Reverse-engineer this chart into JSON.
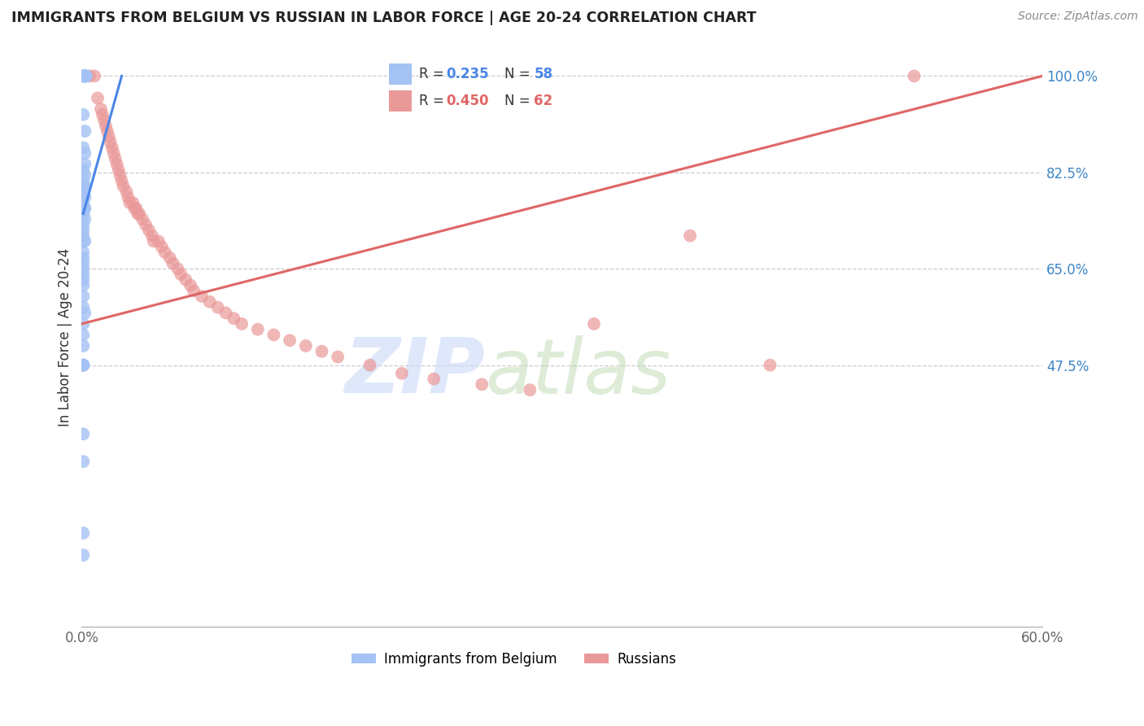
{
  "title": "IMMIGRANTS FROM BELGIUM VS RUSSIAN IN LABOR FORCE | AGE 20-24 CORRELATION CHART",
  "source": "Source: ZipAtlas.com",
  "ylabel": "In Labor Force | Age 20-24",
  "xlim": [
    0.0,
    0.6
  ],
  "ylim": [
    0.0,
    1.05
  ],
  "ytick_vals": [
    0.475,
    0.65,
    0.825,
    1.0
  ],
  "ytick_labels": [
    "47.5%",
    "65.0%",
    "82.5%",
    "100.0%"
  ],
  "xtick_vals": [
    0.0,
    0.1,
    0.2,
    0.3,
    0.4,
    0.5,
    0.6
  ],
  "xtick_labels": [
    "0.0%",
    "",
    "",
    "",
    "",
    "",
    "60.0%"
  ],
  "blue_R": 0.235,
  "blue_N": 58,
  "pink_R": 0.45,
  "pink_N": 62,
  "blue_color": "#a4c2f4",
  "pink_color": "#ea9999",
  "blue_line_color": "#4a86e8",
  "pink_line_color": "#e06666",
  "watermark_zip": "ZIP",
  "watermark_atlas": "atlas",
  "blue_scatter_x": [
    0.001,
    0.002,
    0.001,
    0.002,
    0.003,
    0.002,
    0.001,
    0.002,
    0.001,
    0.002,
    0.001,
    0.002,
    0.001,
    0.002,
    0.002,
    0.001,
    0.002,
    0.001,
    0.001,
    0.002,
    0.001,
    0.001,
    0.001,
    0.002,
    0.001,
    0.001,
    0.001,
    0.002,
    0.002,
    0.001,
    0.001,
    0.002,
    0.001,
    0.001,
    0.001,
    0.001,
    0.002,
    0.001,
    0.001,
    0.001,
    0.001,
    0.001,
    0.001,
    0.001,
    0.001,
    0.001,
    0.002,
    0.001,
    0.001,
    0.001,
    0.001,
    0.001,
    0.001,
    0.001,
    0.001,
    0.001,
    0.001,
    0.001
  ],
  "blue_scatter_y": [
    1.0,
    1.0,
    1.0,
    1.0,
    1.0,
    1.0,
    1.0,
    1.0,
    1.0,
    1.0,
    0.93,
    0.9,
    0.87,
    0.86,
    0.84,
    0.83,
    0.82,
    0.81,
    0.8,
    0.8,
    0.79,
    0.79,
    0.78,
    0.78,
    0.77,
    0.77,
    0.76,
    0.76,
    0.76,
    0.75,
    0.75,
    0.74,
    0.73,
    0.72,
    0.71,
    0.7,
    0.7,
    0.68,
    0.67,
    0.66,
    0.65,
    0.64,
    0.63,
    0.62,
    0.6,
    0.58,
    0.57,
    0.55,
    0.53,
    0.51,
    0.475,
    0.475,
    0.475,
    0.475,
    0.35,
    0.3,
    0.17,
    0.13
  ],
  "pink_scatter_x": [
    0.005,
    0.008,
    0.01,
    0.012,
    0.013,
    0.014,
    0.015,
    0.016,
    0.017,
    0.018,
    0.019,
    0.02,
    0.021,
    0.022,
    0.023,
    0.024,
    0.025,
    0.026,
    0.028,
    0.029,
    0.03,
    0.032,
    0.033,
    0.034,
    0.035,
    0.036,
    0.038,
    0.04,
    0.042,
    0.044,
    0.045,
    0.048,
    0.05,
    0.052,
    0.055,
    0.057,
    0.06,
    0.062,
    0.065,
    0.068,
    0.07,
    0.075,
    0.08,
    0.085,
    0.09,
    0.095,
    0.1,
    0.11,
    0.12,
    0.13,
    0.14,
    0.15,
    0.16,
    0.18,
    0.2,
    0.22,
    0.25,
    0.28,
    0.32,
    0.38,
    0.43,
    0.52
  ],
  "pink_scatter_y": [
    1.0,
    1.0,
    0.96,
    0.94,
    0.93,
    0.92,
    0.91,
    0.9,
    0.89,
    0.88,
    0.87,
    0.86,
    0.85,
    0.84,
    0.83,
    0.82,
    0.81,
    0.8,
    0.79,
    0.78,
    0.77,
    0.77,
    0.76,
    0.76,
    0.75,
    0.75,
    0.74,
    0.73,
    0.72,
    0.71,
    0.7,
    0.7,
    0.69,
    0.68,
    0.67,
    0.66,
    0.65,
    0.64,
    0.63,
    0.62,
    0.61,
    0.6,
    0.59,
    0.58,
    0.57,
    0.56,
    0.55,
    0.54,
    0.53,
    0.52,
    0.51,
    0.5,
    0.49,
    0.475,
    0.46,
    0.45,
    0.44,
    0.43,
    0.55,
    0.71,
    0.475,
    1.0
  ],
  "blue_line_x0": 0.001,
  "blue_line_x1": 0.025,
  "blue_line_y0": 0.75,
  "blue_line_y1": 1.0,
  "pink_line_x0": 0.0,
  "pink_line_x1": 0.6,
  "pink_line_y0": 0.55,
  "pink_line_y1": 1.0
}
